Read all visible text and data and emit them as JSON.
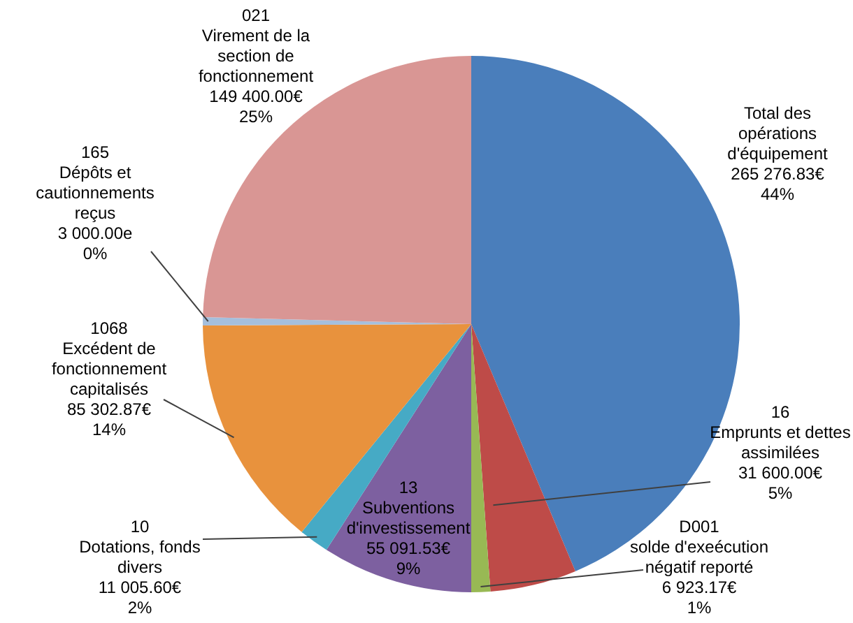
{
  "chart_data": {
    "type": "pie",
    "categories": [
      "Total des\nopérations\nd'équipement",
      "16\nEmprunts et dettes\nassimilées",
      "D001\nsolde d'exeécution\nnégatif reporté",
      "13\nSubventions\nd'investissement",
      "10\nDotations, fonds\ndivers",
      "1068\nExcédent de\nfonctionnement\ncapitalisés",
      "165\nDépôts et\ncautionnements\nreçus",
      "021\nVirement de la\nsection de\nfonctionnement"
    ],
    "values": [
      265276.83,
      31600.0,
      6923.17,
      55091.53,
      11005.6,
      85302.87,
      3000.0,
      149400.0
    ],
    "colors": [
      "#4a7ebb",
      "#be4b48",
      "#98b954",
      "#7d60a0",
      "#46aac5",
      "#e8923d",
      "#a5bfdd",
      "#d99694"
    ],
    "value_labels": [
      "265 276.83€\n44%",
      "31 600.00€\n5%",
      "6 923.17€\n1%",
      "55 091.53€\n9%",
      "11 005.60€\n2%",
      "85 302.87€\n14%",
      "3 000.00e\n0%",
      "149 400.00€\n25%"
    ]
  }
}
